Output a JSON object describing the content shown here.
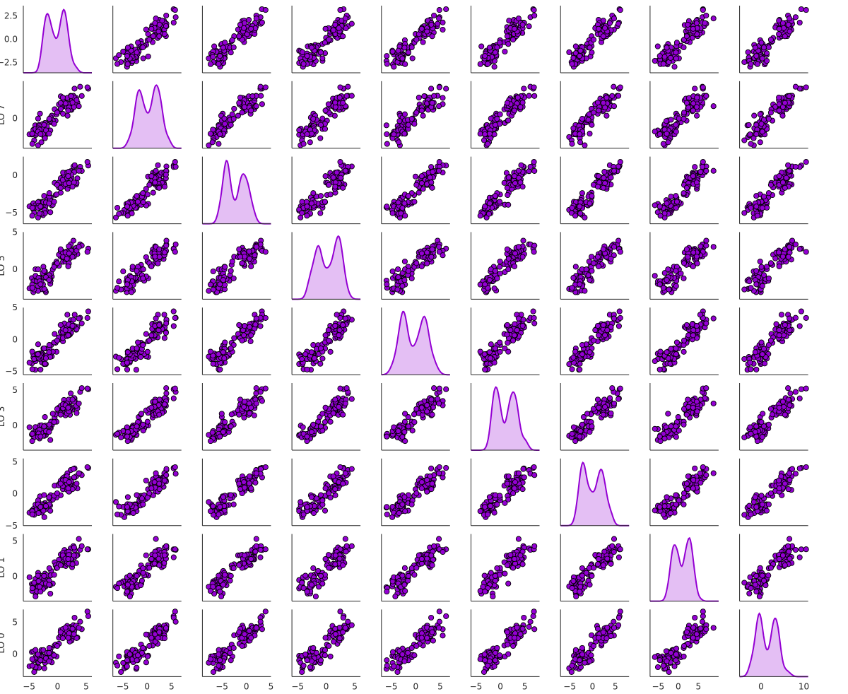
{
  "chart_data": {
    "type": "scatter",
    "subtype": "pairplot",
    "n_vars": 9,
    "n_points_per_panel": 100,
    "diagonal": "kde",
    "grid": false,
    "colors": {
      "marker_fill": "#9400d3",
      "marker_edge": "#000000",
      "kde": "#9400d3"
    },
    "variables": [
      {
        "ylabel": "",
        "range": [
          -3.6,
          3.6
        ],
        "yticks": [
          -2.5,
          0.0,
          2.5
        ],
        "ytick_labels": [
          "−2.5",
          "0.0",
          "2.5"
        ]
      },
      {
        "ylabel": "LO 7",
        "range": [
          -4.2,
          5.2
        ],
        "yticks": [
          0
        ],
        "ytick_labels": [
          "0"
        ]
      },
      {
        "ylabel": "",
        "range": [
          -6.5,
          2.5
        ],
        "yticks": [
          -5,
          0
        ],
        "ytick_labels": [
          "−5",
          "0"
        ]
      },
      {
        "ylabel": "LO 5",
        "range": [
          -4.0,
          5.0
        ],
        "yticks": [
          0,
          5
        ],
        "ytick_labels": [
          "0",
          "5"
        ]
      },
      {
        "ylabel": "",
        "range": [
          -5.5,
          5.0
        ],
        "yticks": [
          -5,
          0,
          5
        ],
        "ytick_labels": [
          "−5",
          "0",
          "5"
        ]
      },
      {
        "ylabel": "LO 3",
        "range": [
          -3.5,
          6.0
        ],
        "yticks": [
          0,
          5
        ],
        "ytick_labels": [
          "0",
          "5"
        ]
      },
      {
        "ylabel": "",
        "range": [
          -5.0,
          5.5
        ],
        "yticks": [
          -5,
          0,
          5
        ],
        "ytick_labels": [
          "−5",
          "0",
          "5"
        ]
      },
      {
        "ylabel": "LO 1",
        "range": [
          -3.5,
          6.0
        ],
        "yticks": [
          0,
          5
        ],
        "ytick_labels": [
          "0",
          "5"
        ]
      },
      {
        "ylabel": "LO 0",
        "range": [
          -3.5,
          7.0
        ],
        "yticks": [
          0,
          5
        ],
        "ytick_labels": [
          "0",
          "5"
        ]
      }
    ],
    "xaxis_bottom": [
      {
        "range": [
          -6,
          6
        ],
        "xticks": [
          -5,
          0,
          5
        ],
        "xtick_labels": [
          "−5",
          "0",
          "5"
        ]
      },
      {
        "range": [
          -7,
          7
        ],
        "xticks": [
          -5,
          0,
          5
        ],
        "xtick_labels": [
          "−5",
          "0",
          "5"
        ]
      },
      {
        "range": [
          -9,
          5
        ],
        "xticks": [
          -5,
          0,
          5
        ],
        "xtick_labels": [
          "−5",
          "0",
          "5"
        ]
      },
      {
        "range": [
          -6,
          6
        ],
        "xticks": [
          -5,
          0,
          5
        ],
        "xtick_labels": [
          "−5",
          "0",
          "5"
        ]
      },
      {
        "range": [
          -7,
          7
        ],
        "xticks": [
          -5,
          0,
          5
        ],
        "xtick_labels": [
          "−5",
          "0",
          "5"
        ]
      },
      {
        "range": [
          -6,
          8
        ],
        "xticks": [
          -5,
          0,
          5
        ],
        "xtick_labels": [
          "−5",
          "0",
          "5"
        ]
      },
      {
        "range": [
          -7,
          8
        ],
        "xticks": [
          -5,
          0,
          5
        ],
        "xtick_labels": [
          "−5",
          "0",
          "5"
        ]
      },
      {
        "range": [
          -7,
          10
        ],
        "xticks": [
          -5,
          0,
          5
        ],
        "xtick_labels": [
          "−5",
          "0",
          "5"
        ]
      },
      {
        "range": [
          -5,
          11
        ],
        "xticks": [
          0,
          10
        ],
        "xtick_labels": [
          "0",
          "10"
        ]
      }
    ]
  }
}
